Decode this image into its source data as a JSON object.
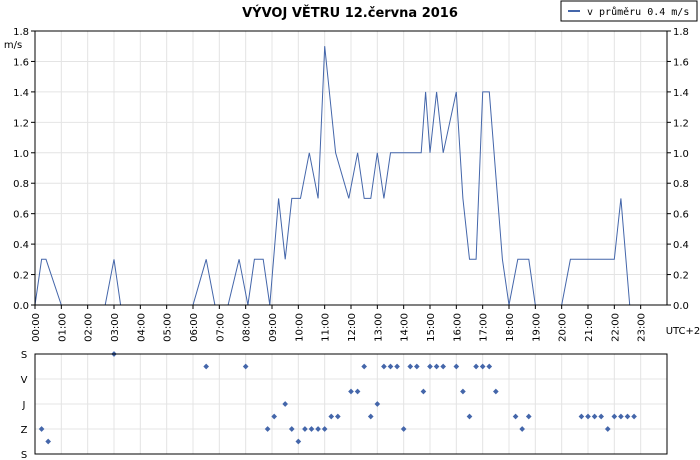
{
  "title": "VÝVOJ VĚTRU  12.června 2016",
  "legend": {
    "label": "v průměru 0.4 m/s"
  },
  "unit_label": "m/s",
  "timezone_label": "UTC+2",
  "colors": {
    "series": "#4466aa",
    "grid": "#e4e4e4",
    "frame": "#000000"
  },
  "chart_data": [
    {
      "type": "line",
      "title": "VÝVOJ VĚTRU  12.června 2016",
      "ylabel": "m/s",
      "xlabel": "",
      "ylim": [
        0,
        1.8
      ],
      "yticks": [
        "0.0",
        "0.2",
        "0.4",
        "0.6",
        "0.8",
        "1.0",
        "1.2",
        "1.4",
        "1.6",
        "1.8"
      ],
      "xlim": [
        "00:00",
        "24:00"
      ],
      "xticks": [
        "00:00",
        "01:00",
        "02:00",
        "03:00",
        "04:00",
        "05:00",
        "06:00",
        "07:00",
        "08:00",
        "09:00",
        "10:00",
        "11:00",
        "12:00",
        "13:00",
        "14:00",
        "15:00",
        "16:00",
        "17:00",
        "18:00",
        "19:00",
        "20:00",
        "21:00",
        "22:00",
        "23:00"
      ],
      "grid": true,
      "legend_position": "top-right",
      "series": [
        {
          "name": "v průměru 0.4 m/s",
          "x": [
            "00:00",
            "00:15",
            "00:25",
            "01:00",
            "02:40",
            "03:00",
            "03:15",
            "06:00",
            "06:30",
            "06:50",
            "07:20",
            "07:45",
            "08:05",
            "08:20",
            "08:40",
            "08:55",
            "09:15",
            "09:30",
            "09:45",
            "10:05",
            "10:25",
            "10:45",
            "11:00",
            "11:25",
            "11:55",
            "12:15",
            "12:30",
            "12:45",
            "13:00",
            "13:15",
            "13:30",
            "14:40",
            "14:50",
            "15:00",
            "15:15",
            "15:30",
            "16:00",
            "16:15",
            "16:30",
            "16:45",
            "17:00",
            "17:15",
            "17:45",
            "18:00",
            "18:20",
            "18:45",
            "19:00",
            "20:00",
            "20:20",
            "21:00",
            "21:20",
            "21:45",
            "22:00",
            "22:15",
            "22:35",
            "23:00"
          ],
          "y": [
            0,
            0.3,
            0.3,
            0,
            0,
            0.3,
            0,
            0,
            0.3,
            0,
            0,
            0.3,
            0,
            0.3,
            0.3,
            0,
            0.7,
            0.3,
            0.7,
            0.7,
            1.0,
            0.7,
            1.7,
            1.0,
            0.7,
            1.0,
            0.7,
            0.7,
            1.0,
            0.7,
            1.0,
            1.0,
            1.4,
            1.0,
            1.4,
            1.0,
            1.4,
            0.7,
            0.3,
            0.3,
            1.4,
            1.4,
            0.3,
            0,
            0.3,
            0.3,
            0,
            0,
            0.3,
            0.3,
            0.3,
            0.3,
            0.3,
            0.7,
            0,
            0
          ]
        }
      ]
    },
    {
      "type": "scatter",
      "title": "",
      "xlim": [
        "00:00",
        "24:00"
      ],
      "yticks": [
        "S",
        "V",
        "J",
        "Z",
        "S"
      ],
      "grid": true,
      "series": [
        {
          "name": "",
          "points": [
            [
              "00:15",
              "Z"
            ],
            [
              "00:30",
              "Z-S"
            ],
            [
              "03:00",
              "S"
            ],
            [
              "06:30",
              "S-V"
            ],
            [
              "08:00",
              "S-V"
            ],
            [
              "08:50",
              "Z"
            ],
            [
              "09:05",
              "J-Z"
            ],
            [
              "09:30",
              "J"
            ],
            [
              "09:45",
              "Z"
            ],
            [
              "10:00",
              "Z-S"
            ],
            [
              "10:15",
              "Z"
            ],
            [
              "10:30",
              "Z"
            ],
            [
              "10:45",
              "Z"
            ],
            [
              "11:00",
              "Z"
            ],
            [
              "11:15",
              "J-Z"
            ],
            [
              "11:30",
              "J-Z"
            ],
            [
              "12:00",
              "V-J"
            ],
            [
              "12:15",
              "V-J"
            ],
            [
              "12:30",
              "S-V"
            ],
            [
              "12:45",
              "J-Z"
            ],
            [
              "13:00",
              "J"
            ],
            [
              "13:15",
              "S-V"
            ],
            [
              "13:30",
              "S-V"
            ],
            [
              "13:45",
              "S-V"
            ],
            [
              "14:00",
              "Z"
            ],
            [
              "14:15",
              "S-V"
            ],
            [
              "14:30",
              "S-V"
            ],
            [
              "14:45",
              "V-J"
            ],
            [
              "15:00",
              "S-V"
            ],
            [
              "15:15",
              "S-V"
            ],
            [
              "15:30",
              "S-V"
            ],
            [
              "16:00",
              "S-V"
            ],
            [
              "16:15",
              "V-J"
            ],
            [
              "16:30",
              "J-Z"
            ],
            [
              "16:45",
              "S-V"
            ],
            [
              "17:00",
              "S-V"
            ],
            [
              "17:15",
              "S-V"
            ],
            [
              "17:30",
              "V-J"
            ],
            [
              "18:15",
              "J-Z"
            ],
            [
              "18:30",
              "Z"
            ],
            [
              "18:45",
              "J-Z"
            ],
            [
              "20:45",
              "J-Z"
            ],
            [
              "21:00",
              "J-Z"
            ],
            [
              "21:15",
              "J-Z"
            ],
            [
              "21:30",
              "J-Z"
            ],
            [
              "21:45",
              "Z"
            ],
            [
              "22:00",
              "J-Z"
            ],
            [
              "22:15",
              "J-Z"
            ],
            [
              "22:30",
              "J-Z"
            ],
            [
              "22:45",
              "J-Z"
            ]
          ]
        }
      ]
    }
  ]
}
